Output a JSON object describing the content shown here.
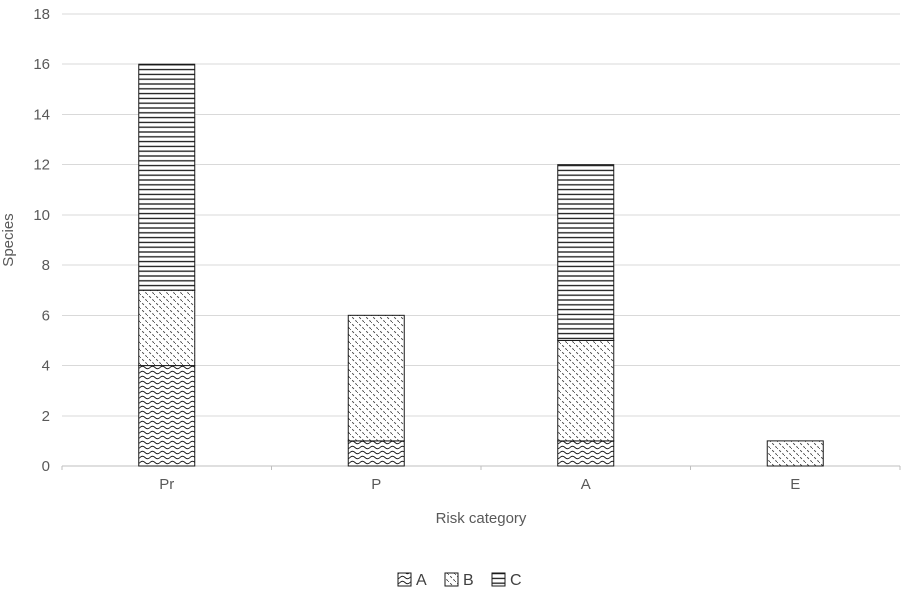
{
  "chart_data": {
    "type": "bar",
    "stacked": true,
    "title": "",
    "xlabel": "Risk category",
    "ylabel": "Species",
    "categories": [
      "Pr",
      "P",
      "A",
      "E"
    ],
    "series": [
      {
        "name": "A",
        "pattern": "wave",
        "values": [
          4,
          1,
          1,
          0
        ]
      },
      {
        "name": "B",
        "pattern": "dashed-diagonal",
        "values": [
          3,
          5,
          4,
          1
        ]
      },
      {
        "name": "C",
        "pattern": "horizontal-lines",
        "values": [
          9,
          0,
          7,
          0
        ]
      }
    ],
    "totals": [
      16,
      6,
      12,
      1
    ],
    "ylim": [
      0,
      18
    ],
    "ytick_step": 2,
    "grid": true,
    "legend_position": "bottom",
    "legend_labels": [
      "A",
      "B",
      "C"
    ],
    "colors": {
      "background": "#ffffff",
      "grid": "#d9d9d9",
      "axis": "#bfbfbf",
      "bar_stroke": "#1a1a1a",
      "text": "#595959"
    }
  }
}
